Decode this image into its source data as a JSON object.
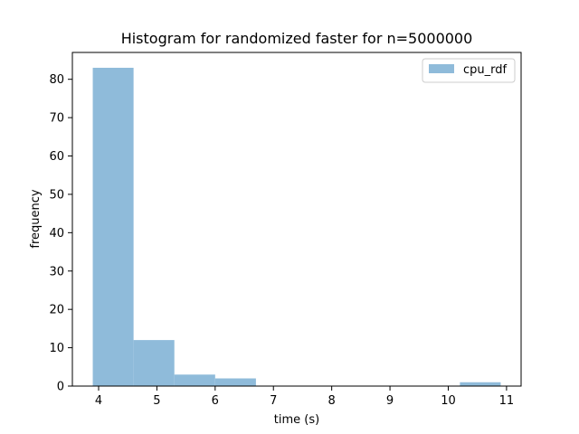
{
  "chart_data": {
    "type": "bar",
    "title": "Histogram for randomized faster for n=5000000",
    "xlabel": "time (s)",
    "ylabel": "frequency",
    "xlim": [
      3.55,
      11.25
    ],
    "ylim": [
      0,
      87
    ],
    "xticks": [
      4,
      5,
      6,
      7,
      8,
      9,
      10,
      11
    ],
    "yticks": [
      0,
      10,
      20,
      30,
      40,
      50,
      60,
      70,
      80
    ],
    "grid": false,
    "legend_position": "top-right",
    "series": [
      {
        "name": "cpu_rdf",
        "color": "#8fbbda",
        "bins": [
          {
            "x0": 3.9,
            "x1": 4.6,
            "count": 83
          },
          {
            "x0": 4.6,
            "x1": 5.3,
            "count": 12
          },
          {
            "x0": 5.3,
            "x1": 6.0,
            "count": 3
          },
          {
            "x0": 6.0,
            "x1": 6.7,
            "count": 2
          },
          {
            "x0": 6.7,
            "x1": 7.4,
            "count": 0
          },
          {
            "x0": 7.4,
            "x1": 8.1,
            "count": 0
          },
          {
            "x0": 8.1,
            "x1": 8.8,
            "count": 0
          },
          {
            "x0": 8.8,
            "x1": 9.5,
            "count": 0
          },
          {
            "x0": 9.5,
            "x1": 10.2,
            "count": 0
          },
          {
            "x0": 10.2,
            "x1": 10.9,
            "count": 1
          }
        ]
      }
    ]
  }
}
